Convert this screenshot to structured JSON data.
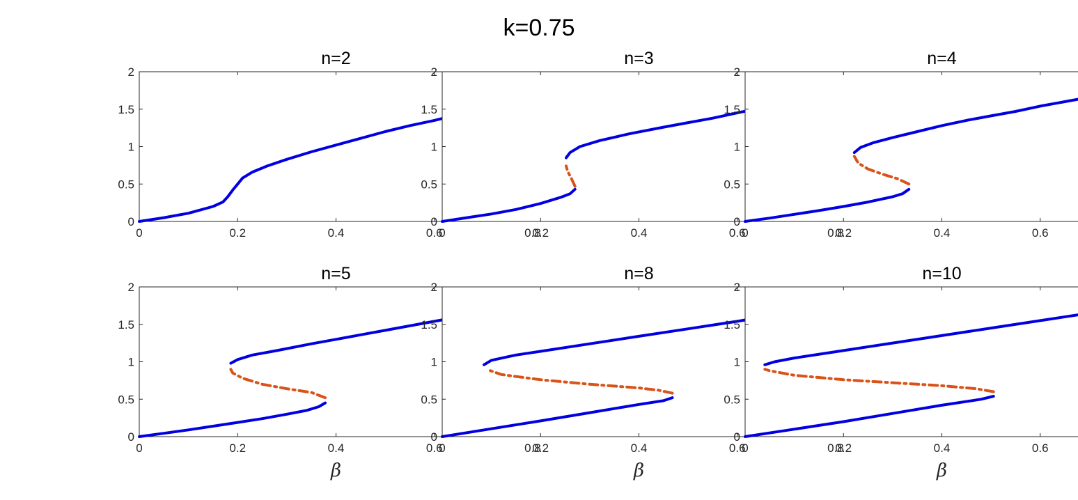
{
  "figure": {
    "suptitle": "k=0.75",
    "colors": {
      "stable": "#0000e0",
      "unstable": "#d95319",
      "axes": "#262626"
    }
  },
  "chart_data": [
    {
      "type": "line",
      "title": "n=2",
      "xlabel": "",
      "xlim": [
        0,
        0.8
      ],
      "ylim": [
        0,
        2
      ],
      "xticks": [
        "0",
        "0.2",
        "0.4",
        "0.6",
        "0.8"
      ],
      "yticks": [
        "0",
        "0.5",
        "1",
        "1.5",
        "2"
      ],
      "series": [
        {
          "style": "stable",
          "points": [
            [
              0,
              0
            ],
            [
              0.05,
              0.05
            ],
            [
              0.1,
              0.11
            ],
            [
              0.15,
              0.2
            ],
            [
              0.17,
              0.26
            ],
            [
              0.18,
              0.33
            ],
            [
              0.19,
              0.42
            ],
            [
              0.2,
              0.5
            ],
            [
              0.21,
              0.58
            ],
            [
              0.23,
              0.66
            ],
            [
              0.26,
              0.74
            ],
            [
              0.3,
              0.83
            ],
            [
              0.35,
              0.93
            ],
            [
              0.4,
              1.02
            ],
            [
              0.45,
              1.11
            ],
            [
              0.5,
              1.2
            ],
            [
              0.55,
              1.28
            ],
            [
              0.6,
              1.35
            ],
            [
              0.65,
              1.43
            ],
            [
              0.7,
              1.5
            ],
            [
              0.75,
              1.57
            ]
          ]
        }
      ]
    },
    {
      "type": "line",
      "title": "n=3",
      "xlabel": "",
      "xlim": [
        0,
        0.8
      ],
      "ylim": [
        0,
        2
      ],
      "xticks": [
        "0",
        "0.2",
        "0.4",
        "0.6",
        "0.8"
      ],
      "yticks": [
        "0",
        "0.5",
        "1",
        "1.5",
        "2"
      ],
      "series": [
        {
          "style": "stable",
          "points": [
            [
              0,
              0
            ],
            [
              0.05,
              0.05
            ],
            [
              0.1,
              0.1
            ],
            [
              0.15,
              0.16
            ],
            [
              0.2,
              0.24
            ],
            [
              0.24,
              0.32
            ],
            [
              0.26,
              0.37
            ],
            [
              0.27,
              0.43
            ]
          ]
        },
        {
          "style": "unstable",
          "points": [
            [
              0.27,
              0.47
            ],
            [
              0.263,
              0.57
            ],
            [
              0.255,
              0.67
            ],
            [
              0.252,
              0.74
            ]
          ]
        },
        {
          "style": "stable",
          "points": [
            [
              0.252,
              0.85
            ],
            [
              0.26,
              0.92
            ],
            [
              0.28,
              1.0
            ],
            [
              0.32,
              1.08
            ],
            [
              0.38,
              1.17
            ],
            [
              0.45,
              1.26
            ],
            [
              0.5,
              1.32
            ],
            [
              0.55,
              1.38
            ],
            [
              0.6,
              1.45
            ],
            [
              0.65,
              1.52
            ],
            [
              0.7,
              1.6
            ],
            [
              0.75,
              1.67
            ]
          ]
        }
      ]
    },
    {
      "type": "line",
      "title": "n=4",
      "xlabel": "",
      "xlim": [
        0,
        0.8
      ],
      "ylim": [
        0,
        2
      ],
      "xticks": [
        "0",
        "0.2",
        "0.4",
        "0.6",
        "0.8"
      ],
      "yticks": [
        "0",
        "0.5",
        "1",
        "1.5",
        "2"
      ],
      "series": [
        {
          "style": "stable",
          "points": [
            [
              0,
              0
            ],
            [
              0.05,
              0.045
            ],
            [
              0.1,
              0.095
            ],
            [
              0.15,
              0.145
            ],
            [
              0.2,
              0.2
            ],
            [
              0.25,
              0.26
            ],
            [
              0.3,
              0.33
            ],
            [
              0.32,
              0.37
            ],
            [
              0.333,
              0.43
            ]
          ]
        },
        {
          "style": "unstable",
          "points": [
            [
              0.333,
              0.5
            ],
            [
              0.31,
              0.57
            ],
            [
              0.28,
              0.63
            ],
            [
              0.25,
              0.7
            ],
            [
              0.23,
              0.78
            ],
            [
              0.222,
              0.87
            ]
          ]
        },
        {
          "style": "stable",
          "points": [
            [
              0.222,
              0.92
            ],
            [
              0.235,
              0.99
            ],
            [
              0.26,
              1.05
            ],
            [
              0.3,
              1.12
            ],
            [
              0.35,
              1.2
            ],
            [
              0.4,
              1.28
            ],
            [
              0.45,
              1.35
            ],
            [
              0.5,
              1.41
            ],
            [
              0.55,
              1.47
            ],
            [
              0.6,
              1.54
            ],
            [
              0.65,
              1.6
            ],
            [
              0.7,
              1.66
            ],
            [
              0.75,
              1.72
            ]
          ]
        }
      ]
    },
    {
      "type": "line",
      "title": "n=5",
      "xlabel": "β",
      "xlim": [
        0,
        0.8
      ],
      "ylim": [
        0,
        2
      ],
      "xticks": [
        "0",
        "0.2",
        "0.4",
        "0.6",
        "0.8"
      ],
      "yticks": [
        "0",
        "0.5",
        "1",
        "1.5",
        "2"
      ],
      "series": [
        {
          "style": "stable",
          "points": [
            [
              0,
              0
            ],
            [
              0.05,
              0.045
            ],
            [
              0.1,
              0.09
            ],
            [
              0.15,
              0.14
            ],
            [
              0.2,
              0.19
            ],
            [
              0.25,
              0.24
            ],
            [
              0.3,
              0.3
            ],
            [
              0.34,
              0.35
            ],
            [
              0.365,
              0.4
            ],
            [
              0.378,
              0.45
            ]
          ]
        },
        {
          "style": "unstable",
          "points": [
            [
              0.378,
              0.52
            ],
            [
              0.35,
              0.59
            ],
            [
              0.3,
              0.64
            ],
            [
              0.25,
              0.7
            ],
            [
              0.21,
              0.78
            ],
            [
              0.19,
              0.85
            ],
            [
              0.186,
              0.9
            ]
          ]
        },
        {
          "style": "stable",
          "points": [
            [
              0.186,
              0.98
            ],
            [
              0.2,
              1.03
            ],
            [
              0.23,
              1.09
            ],
            [
              0.28,
              1.15
            ],
            [
              0.35,
              1.24
            ],
            [
              0.4,
              1.3
            ],
            [
              0.45,
              1.36
            ],
            [
              0.5,
              1.42
            ],
            [
              0.55,
              1.48
            ],
            [
              0.6,
              1.54
            ],
            [
              0.65,
              1.6
            ],
            [
              0.7,
              1.67
            ],
            [
              0.75,
              1.74
            ]
          ]
        }
      ]
    },
    {
      "type": "line",
      "title": "n=8",
      "xlabel": "β",
      "xlim": [
        0,
        0.8
      ],
      "ylim": [
        0,
        2
      ],
      "xticks": [
        "0",
        "0.2",
        "0.4",
        "0.6",
        "0.8"
      ],
      "yticks": [
        "0",
        "0.5",
        "1",
        "1.5",
        "2"
      ],
      "series": [
        {
          "style": "stable",
          "points": [
            [
              0,
              0
            ],
            [
              0.1,
              0.105
            ],
            [
              0.2,
              0.21
            ],
            [
              0.3,
              0.32
            ],
            [
              0.4,
              0.43
            ],
            [
              0.45,
              0.48
            ],
            [
              0.468,
              0.52
            ]
          ]
        },
        {
          "style": "unstable",
          "points": [
            [
              0.468,
              0.58
            ],
            [
              0.44,
              0.62
            ],
            [
              0.4,
              0.65
            ],
            [
              0.3,
              0.7
            ],
            [
              0.2,
              0.76
            ],
            [
              0.12,
              0.83
            ],
            [
              0.09,
              0.9
            ]
          ]
        },
        {
          "style": "stable",
          "points": [
            [
              0.085,
              0.96
            ],
            [
              0.1,
              1.02
            ],
            [
              0.15,
              1.09
            ],
            [
              0.2,
              1.14
            ],
            [
              0.3,
              1.24
            ],
            [
              0.4,
              1.34
            ],
            [
              0.5,
              1.44
            ],
            [
              0.6,
              1.54
            ],
            [
              0.7,
              1.65
            ],
            [
              0.75,
              1.75
            ]
          ]
        }
      ]
    },
    {
      "type": "line",
      "title": "n=10",
      "xlabel": "β",
      "xlim": [
        0,
        0.8
      ],
      "ylim": [
        0,
        2
      ],
      "xticks": [
        "0",
        "0.2",
        "0.4",
        "0.6",
        "0.8"
      ],
      "yticks": [
        "0",
        "0.5",
        "1",
        "1.5",
        "2"
      ],
      "series": [
        {
          "style": "stable",
          "points": [
            [
              0,
              0
            ],
            [
              0.1,
              0.1
            ],
            [
              0.2,
              0.2
            ],
            [
              0.3,
              0.31
            ],
            [
              0.4,
              0.42
            ],
            [
              0.48,
              0.5
            ],
            [
              0.505,
              0.54
            ]
          ]
        },
        {
          "style": "unstable",
          "points": [
            [
              0.505,
              0.6
            ],
            [
              0.47,
              0.64
            ],
            [
              0.4,
              0.68
            ],
            [
              0.3,
              0.72
            ],
            [
              0.2,
              0.76
            ],
            [
              0.1,
              0.82
            ],
            [
              0.05,
              0.88
            ],
            [
              0.04,
              0.9
            ]
          ]
        },
        {
          "style": "stable",
          "points": [
            [
              0.04,
              0.96
            ],
            [
              0.06,
              1.0
            ],
            [
              0.1,
              1.05
            ],
            [
              0.2,
              1.15
            ],
            [
              0.3,
              1.25
            ],
            [
              0.4,
              1.35
            ],
            [
              0.5,
              1.45
            ],
            [
              0.6,
              1.55
            ],
            [
              0.7,
              1.65
            ],
            [
              0.75,
              1.75
            ]
          ]
        }
      ]
    }
  ]
}
